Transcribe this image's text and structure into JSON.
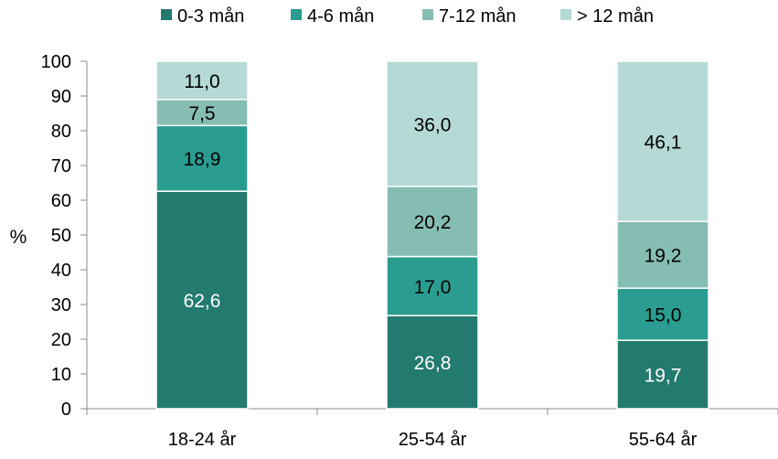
{
  "chart_data": {
    "type": "bar",
    "stacked": true,
    "categories": [
      "18-24 år",
      "25-54 år",
      "55-64 år"
    ],
    "series": [
      {
        "name": "0-3 mån",
        "values": [
          62.6,
          26.8,
          19.7
        ],
        "labels": [
          "62,6",
          "26,8",
          "19,7"
        ],
        "color": "#237A6E",
        "label_color": "#ffffff"
      },
      {
        "name": "4-6 mån",
        "values": [
          18.9,
          17.0,
          15.0
        ],
        "labels": [
          "18,9",
          "17,0",
          "15,0"
        ],
        "color": "#2A9D90",
        "label_color": "#000000"
      },
      {
        "name": "7-12 mån",
        "values": [
          7.5,
          20.2,
          19.2
        ],
        "labels": [
          "7,5",
          "20,2",
          "19,2"
        ],
        "color": "#86BDB2",
        "label_color": "#000000"
      },
      {
        "name": "> 12 mån",
        "values": [
          11.0,
          36.0,
          46.1
        ],
        "labels": [
          "11,0",
          "36,0",
          "46,1"
        ],
        "color": "#B5D9D5",
        "label_color": "#000000"
      }
    ],
    "ylabel": "%",
    "ylim": [
      0,
      100
    ],
    "yticks": [
      0,
      10,
      20,
      30,
      40,
      50,
      60,
      70,
      80,
      90,
      100
    ],
    "legend_position": "top",
    "grid": false
  }
}
